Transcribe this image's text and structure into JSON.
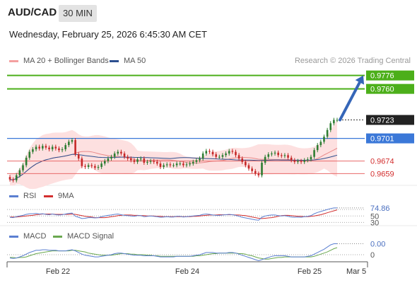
{
  "header": {
    "pair": "AUD/CAD",
    "timeframe": "30 MIN",
    "datetime": "Wednesday, February 25, 2026 6:45:30 AM CET"
  },
  "legend": {
    "ma20_label": "MA 20 + Bollinger Bands",
    "ma50_label": "MA 50",
    "credit": "Research © 2026 Trading Central",
    "rsi_label": "RSI",
    "rsi_ma_label": "9MA",
    "macd_label": "MACD",
    "macd_signal_label": "MACD Signal"
  },
  "colors": {
    "bullish": "#2e7d32",
    "bearish": "#c62828",
    "ma20": "#e88a8a",
    "ma50": "#2c4f8f",
    "bollinger": "#fde0e0",
    "resistance": "#4caf1a",
    "support_blue": "#3b78d8",
    "support_red": "#e86a6a",
    "arrow": "#3566b8",
    "rsi": "#5b7fd1",
    "rsi_ma": "#d32f2f",
    "macd": "#5b7fd1",
    "macd_signal": "#6aa84f"
  },
  "chart_data": [
    {
      "type": "candlestick",
      "name": "price",
      "x_ticks": [
        "Feb 22",
        "Feb 24",
        "Feb 25",
        "Mar 5"
      ],
      "ylim": [
        0.9645,
        0.9785
      ],
      "levels": [
        {
          "value": 0.9776,
          "label": "0.9776",
          "kind": "resistance"
        },
        {
          "value": 0.976,
          "label": "0.9760",
          "kind": "resistance"
        },
        {
          "value": 0.9701,
          "label": "0.9701",
          "kind": "support-blue"
        },
        {
          "value": 0.9674,
          "label": "0.9674",
          "kind": "support-red"
        },
        {
          "value": 0.9659,
          "label": "0.9659",
          "kind": "support-red"
        }
      ],
      "last_price": {
        "value": 0.9723,
        "label": "0.9723"
      },
      "target_arrow": {
        "from": 0.9723,
        "to": 0.9776
      },
      "close": [
        0.9652,
        0.9651,
        0.9657,
        0.9663,
        0.9669,
        0.9678,
        0.9685,
        0.9688,
        0.9691,
        0.9689,
        0.9692,
        0.969,
        0.9688,
        0.9691,
        0.9689,
        0.9687,
        0.9688,
        0.9693,
        0.9697,
        0.9699,
        0.9682,
        0.9677,
        0.9668,
        0.9667,
        0.9669,
        0.9668,
        0.9666,
        0.9667,
        0.9671,
        0.9674,
        0.9677,
        0.9679,
        0.9683,
        0.9685,
        0.9683,
        0.9679,
        0.9677,
        0.9675,
        0.9673,
        0.9676,
        0.9677,
        0.9672,
        0.9673,
        0.9674,
        0.9673,
        0.9671,
        0.9667,
        0.9669,
        0.967,
        0.9669,
        0.9669,
        0.9671,
        0.9671,
        0.9669,
        0.967,
        0.9671,
        0.9673,
        0.9675,
        0.9677,
        0.9683,
        0.9686,
        0.9685,
        0.9682,
        0.9679,
        0.9679,
        0.9681,
        0.9683,
        0.9686,
        0.9685,
        0.9681,
        0.9677,
        0.9673,
        0.9669,
        0.9665,
        0.9662,
        0.9659,
        0.9657,
        0.9672,
        0.9679,
        0.9682,
        0.9683,
        0.9684,
        0.9681,
        0.968,
        0.9681,
        0.9678,
        0.9675,
        0.9673,
        0.9674,
        0.9673,
        0.9675,
        0.9676,
        0.9679,
        0.9687,
        0.9693,
        0.9697,
        0.9703,
        0.9711,
        0.9719,
        0.9723,
        0.9723
      ]
    },
    {
      "type": "line",
      "name": "RSI",
      "ylim": [
        20,
        90
      ],
      "reference_levels": [
        70,
        50,
        30
      ],
      "level_labels": [
        "74.86",
        "50",
        "30"
      ],
      "series": [
        {
          "name": "RSI",
          "values": [
            46,
            45,
            48,
            50,
            52,
            55,
            57,
            57,
            58,
            56,
            57,
            55,
            54,
            56,
            54,
            53,
            54,
            56,
            58,
            59,
            49,
            46,
            42,
            43,
            45,
            45,
            44,
            45,
            48,
            50,
            52,
            53,
            55,
            56,
            54,
            52,
            51,
            50,
            49,
            51,
            51,
            48,
            49,
            50,
            49,
            48,
            46,
            47,
            48,
            47,
            47,
            49,
            49,
            47,
            48,
            49,
            50,
            51,
            52,
            55,
            56,
            55,
            53,
            52,
            52,
            53,
            54,
            55,
            54,
            52,
            49,
            46,
            44,
            42,
            40,
            38,
            37,
            46,
            50,
            52,
            53,
            53,
            51,
            50,
            51,
            49,
            47,
            46,
            47,
            46,
            48,
            49,
            51,
            57,
            61,
            64,
            67,
            70,
            73,
            75,
            74.86
          ]
        },
        {
          "name": "9MA",
          "values": [
            47,
            47,
            47,
            48,
            49,
            50,
            51,
            52,
            54,
            55,
            56,
            56,
            56,
            56,
            55,
            55,
            55,
            55,
            55,
            56,
            55,
            53,
            51,
            49,
            48,
            47,
            45,
            45,
            45,
            45,
            46,
            48,
            49,
            51,
            52,
            53,
            53,
            53,
            52,
            52,
            51,
            51,
            50,
            50,
            50,
            49,
            49,
            48,
            48,
            48,
            48,
            48,
            48,
            48,
            48,
            48,
            49,
            49,
            50,
            51,
            52,
            53,
            53,
            53,
            54,
            54,
            54,
            54,
            54,
            53,
            53,
            52,
            51,
            49,
            47,
            45,
            43,
            42,
            43,
            44,
            45,
            47,
            49,
            51,
            52,
            52,
            51,
            50,
            49,
            49,
            48,
            48,
            49,
            50,
            52,
            54,
            57,
            60,
            63,
            66,
            69
          ]
        }
      ]
    },
    {
      "type": "line",
      "name": "MACD",
      "reference_levels": [
        0
      ],
      "level_labels": [
        "0.00",
        "0"
      ],
      "series": [
        {
          "name": "MACD",
          "values": [
            -0.0006,
            -0.0007,
            -0.0006,
            -0.0004,
            -0.0002,
            0.0001,
            0.0004,
            0.0006,
            0.0008,
            0.0008,
            0.0009,
            0.0009,
            0.0008,
            0.0008,
            0.0008,
            0.0007,
            0.0007,
            0.0007,
            0.0008,
            0.0009,
            0.0007,
            0.0004,
            0.0001,
            -0.0001,
            -0.0002,
            -0.0003,
            -0.0004,
            -0.0004,
            -0.0003,
            -0.0002,
            -0.0001,
            0.0,
            0.0002,
            0.0003,
            0.0003,
            0.0002,
            0.0001,
            0.0,
            -0.0001,
            -0.0001,
            -0.0001,
            -0.0002,
            -0.0002,
            -0.0002,
            -0.0002,
            -0.0003,
            -0.0004,
            -0.0004,
            -0.0004,
            -0.0004,
            -0.0004,
            -0.0003,
            -0.0003,
            -0.0003,
            -0.0003,
            -0.0003,
            -0.0002,
            -0.0001,
            0.0,
            0.0002,
            0.0004,
            0.0004,
            0.0004,
            0.0003,
            0.0003,
            0.0003,
            0.0003,
            0.0004,
            0.0004,
            0.0003,
            0.0001,
            -0.0001,
            -0.0003,
            -0.0005,
            -0.0007,
            -0.0009,
            -0.0011,
            -0.0009,
            -0.0007,
            -0.0005,
            -0.0003,
            -0.0002,
            -0.0002,
            -0.0002,
            -0.0002,
            -0.0003,
            -0.0004,
            -0.0004,
            -0.0004,
            -0.0004,
            -0.0004,
            -0.0003,
            -0.0002,
            0.0001,
            0.0004,
            0.0007,
            0.001,
            0.0014,
            0.0018,
            0.002,
            0.002
          ]
        },
        {
          "name": "MACD Signal",
          "values": [
            -0.0005,
            -0.0005,
            -0.0006,
            -0.0005,
            -0.0005,
            -0.0004,
            -0.0002,
            0.0,
            0.0002,
            0.0003,
            0.0004,
            0.0005,
            0.0006,
            0.0007,
            0.0007,
            0.0007,
            0.0007,
            0.0007,
            0.0007,
            0.0008,
            0.0008,
            0.0007,
            0.0006,
            0.0005,
            0.0003,
            0.0002,
            0.0001,
            0.0,
            -0.0001,
            -0.0001,
            -0.0001,
            -0.0001,
            0.0,
            0.0001,
            0.0002,
            0.0002,
            0.0002,
            0.0001,
            0.0001,
            0.0,
            0.0,
            0.0,
            -0.0001,
            -0.0001,
            -0.0002,
            -0.0002,
            -0.0003,
            -0.0003,
            -0.0003,
            -0.0003,
            -0.0003,
            -0.0003,
            -0.0003,
            -0.0003,
            -0.0003,
            -0.0003,
            -0.0003,
            -0.0002,
            -0.0002,
            -0.0001,
            0.0,
            0.0001,
            0.0002,
            0.0002,
            0.0003,
            0.0003,
            0.0003,
            0.0003,
            0.0003,
            0.0003,
            0.0002,
            0.0002,
            0.0001,
            -0.0001,
            -0.0002,
            -0.0004,
            -0.0006,
            -0.0007,
            -0.0008,
            -0.0008,
            -0.0007,
            -0.0006,
            -0.0005,
            -0.0005,
            -0.0004,
            -0.0004,
            -0.0004,
            -0.0004,
            -0.0004,
            -0.0004,
            -0.0004,
            -0.0004,
            -0.0004,
            -0.0003,
            -0.0001,
            0.0001,
            0.0003,
            0.0005,
            0.0008,
            0.0011,
            0.0013
          ]
        }
      ]
    }
  ]
}
